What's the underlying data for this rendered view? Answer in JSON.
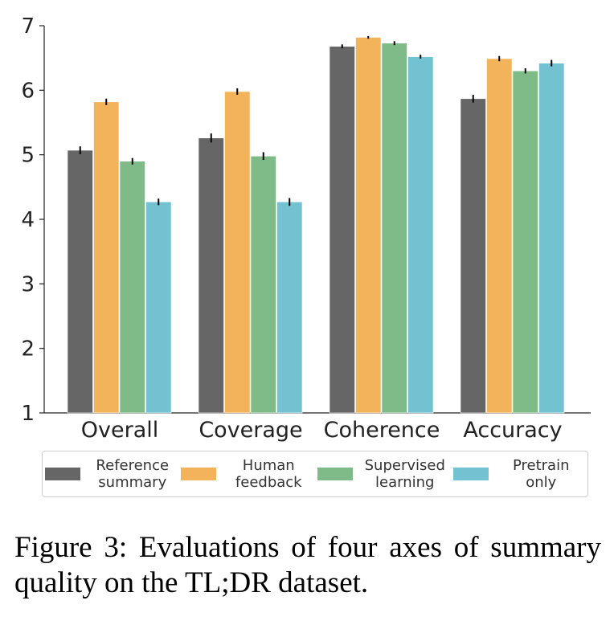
{
  "chart_data": {
    "type": "bar",
    "title": "",
    "xlabel": "",
    "ylabel": "",
    "ylim": [
      1,
      7
    ],
    "yticks": [
      "1",
      "2",
      "3",
      "4",
      "5",
      "6",
      "7"
    ],
    "categories": [
      "Overall",
      "Coverage",
      "Coherence",
      "Accuracy"
    ],
    "series": [
      {
        "name": "Reference summary",
        "color": "#666666",
        "values": [
          5.07,
          5.26,
          6.68,
          5.87
        ],
        "errors": [
          0.06,
          0.07,
          0.03,
          0.06
        ]
      },
      {
        "name": "Human feedback",
        "color": "#f2b35b",
        "values": [
          5.82,
          5.98,
          6.82,
          6.49
        ],
        "errors": [
          0.05,
          0.05,
          0.02,
          0.04
        ]
      },
      {
        "name": "Supervised learning",
        "color": "#7fbb88",
        "values": [
          4.9,
          4.98,
          6.73,
          6.3
        ],
        "errors": [
          0.05,
          0.06,
          0.03,
          0.04
        ]
      },
      {
        "name": "Pretrain only",
        "color": "#72c2d1",
        "values": [
          4.27,
          4.27,
          6.52,
          6.42
        ],
        "errors": [
          0.05,
          0.06,
          0.03,
          0.05
        ]
      }
    ],
    "legend_labels": [
      "Reference summary",
      "Human feedback",
      "Supervised learning",
      "Pretrain only"
    ],
    "legend_placement": "bottom",
    "grid": false
  },
  "caption": "Figure 3:  Evaluations of four axes of summary quality on the TL;DR dataset."
}
